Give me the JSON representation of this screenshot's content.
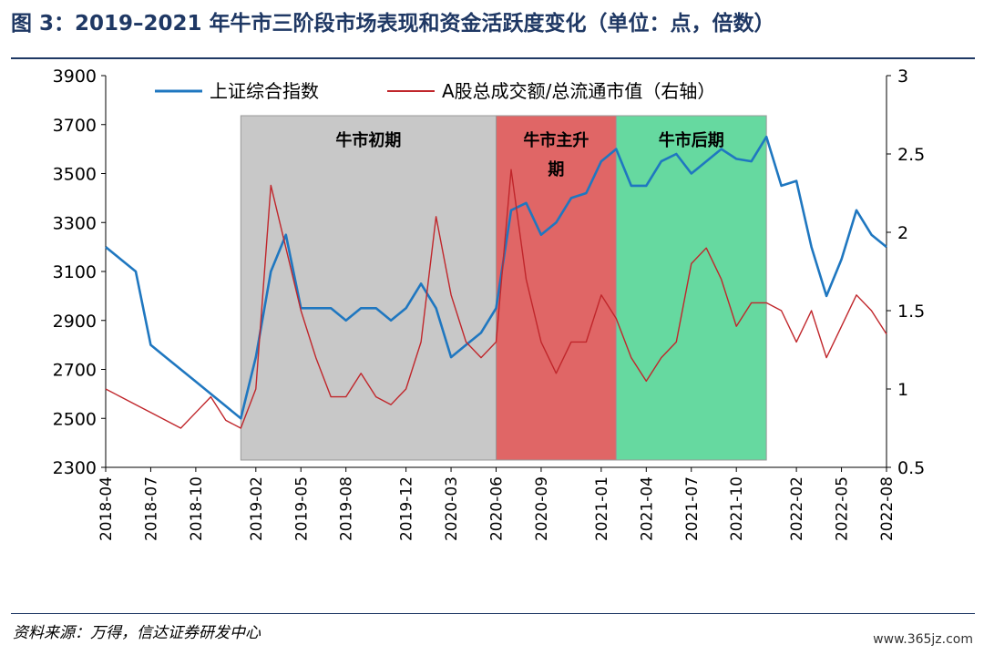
{
  "figure": {
    "title": "图 3：2019–2021 年牛市三阶段市场表现和资金活跃度变化（单位：点，倍数）",
    "source": "资料来源：万得，信达证券研发中心",
    "watermark": "www.365jz.com"
  },
  "chart_data": {
    "type": "line",
    "x_ticks": [
      "2018-04",
      "2018-07",
      "2018-10",
      "2019-02",
      "2019-05",
      "2019-08",
      "2019-12",
      "2020-03",
      "2020-06",
      "2020-09",
      "2021-01",
      "2021-04",
      "2021-07",
      "2021-10",
      "2022-02",
      "2022-05",
      "2022-08"
    ],
    "x_range": [
      "2018-04",
      "2022-08"
    ],
    "y_left": {
      "range": [
        2300,
        3900
      ],
      "ticks": [
        "2300",
        "2500",
        "2700",
        "2900",
        "3100",
        "3300",
        "3500",
        "3700",
        "3900"
      ]
    },
    "y_right": {
      "range": [
        0.5,
        3
      ],
      "ticks": [
        "0.5",
        "1",
        "1.5",
        "2",
        "2.5",
        "3"
      ]
    },
    "legend_position": "top",
    "phases": [
      {
        "label": "牛市初期",
        "start": "2019-01",
        "end": "2020-06",
        "color": "#c8c8c8"
      },
      {
        "label": "牛市主升期",
        "start": "2020-06",
        "end": "2021-02",
        "color": "#e06666"
      },
      {
        "label": "牛市后期",
        "start": "2021-02",
        "end": "2021-12",
        "color": "#66d9a0"
      }
    ],
    "series": [
      {
        "name": "上证综合指数",
        "axis": "left",
        "color": "#1f77c0",
        "points": [
          [
            "2018-04",
            3200
          ],
          [
            "2018-05",
            3150
          ],
          [
            "2018-06",
            3100
          ],
          [
            "2018-07",
            2800
          ],
          [
            "2018-08",
            2750
          ],
          [
            "2018-09",
            2700
          ],
          [
            "2018-10",
            2650
          ],
          [
            "2018-11",
            2600
          ],
          [
            "2018-12",
            2550
          ],
          [
            "2019-01",
            2500
          ],
          [
            "2019-02",
            2750
          ],
          [
            "2019-03",
            3100
          ],
          [
            "2019-04",
            3250
          ],
          [
            "2019-05",
            2950
          ],
          [
            "2019-06",
            2950
          ],
          [
            "2019-07",
            2950
          ],
          [
            "2019-08",
            2900
          ],
          [
            "2019-09",
            2950
          ],
          [
            "2019-10",
            2950
          ],
          [
            "2019-11",
            2900
          ],
          [
            "2019-12",
            2950
          ],
          [
            "2020-01",
            3050
          ],
          [
            "2020-02",
            2950
          ],
          [
            "2020-03",
            2750
          ],
          [
            "2020-04",
            2800
          ],
          [
            "2020-05",
            2850
          ],
          [
            "2020-06",
            2950
          ],
          [
            "2020-07",
            3350
          ],
          [
            "2020-08",
            3380
          ],
          [
            "2020-09",
            3250
          ],
          [
            "2020-10",
            3300
          ],
          [
            "2020-11",
            3400
          ],
          [
            "2020-12",
            3420
          ],
          [
            "2021-01",
            3550
          ],
          [
            "2021-02",
            3600
          ],
          [
            "2021-03",
            3450
          ],
          [
            "2021-04",
            3450
          ],
          [
            "2021-05",
            3550
          ],
          [
            "2021-06",
            3580
          ],
          [
            "2021-07",
            3500
          ],
          [
            "2021-08",
            3550
          ],
          [
            "2021-09",
            3600
          ],
          [
            "2021-10",
            3560
          ],
          [
            "2021-11",
            3550
          ],
          [
            "2021-12",
            3650
          ],
          [
            "2022-01",
            3450
          ],
          [
            "2022-02",
            3470
          ],
          [
            "2022-03",
            3200
          ],
          [
            "2022-04",
            3000
          ],
          [
            "2022-05",
            3150
          ],
          [
            "2022-06",
            3350
          ],
          [
            "2022-07",
            3250
          ],
          [
            "2022-08",
            3200
          ]
        ]
      },
      {
        "name": "A股总成交额/总流通市值（右轴）",
        "axis": "right",
        "color": "#c0262b",
        "points": [
          [
            "2018-04",
            1.0
          ],
          [
            "2018-05",
            0.95
          ],
          [
            "2018-06",
            0.9
          ],
          [
            "2018-07",
            0.85
          ],
          [
            "2018-08",
            0.8
          ],
          [
            "2018-09",
            0.75
          ],
          [
            "2018-10",
            0.85
          ],
          [
            "2018-11",
            0.95
          ],
          [
            "2018-12",
            0.8
          ],
          [
            "2019-01",
            0.75
          ],
          [
            "2019-02",
            1.0
          ],
          [
            "2019-03",
            2.3
          ],
          [
            "2019-04",
            1.9
          ],
          [
            "2019-05",
            1.5
          ],
          [
            "2019-06",
            1.2
          ],
          [
            "2019-07",
            0.95
          ],
          [
            "2019-08",
            0.95
          ],
          [
            "2019-09",
            1.1
          ],
          [
            "2019-10",
            0.95
          ],
          [
            "2019-11",
            0.9
          ],
          [
            "2019-12",
            1.0
          ],
          [
            "2020-01",
            1.3
          ],
          [
            "2020-02",
            2.1
          ],
          [
            "2020-03",
            1.6
          ],
          [
            "2020-04",
            1.3
          ],
          [
            "2020-05",
            1.2
          ],
          [
            "2020-06",
            1.3
          ],
          [
            "2020-07",
            2.4
          ],
          [
            "2020-08",
            1.7
          ],
          [
            "2020-09",
            1.3
          ],
          [
            "2020-10",
            1.1
          ],
          [
            "2020-11",
            1.3
          ],
          [
            "2020-12",
            1.3
          ],
          [
            "2021-01",
            1.6
          ],
          [
            "2021-02",
            1.45
          ],
          [
            "2021-03",
            1.2
          ],
          [
            "2021-04",
            1.05
          ],
          [
            "2021-05",
            1.2
          ],
          [
            "2021-06",
            1.3
          ],
          [
            "2021-07",
            1.8
          ],
          [
            "2021-08",
            1.9
          ],
          [
            "2021-09",
            1.7
          ],
          [
            "2021-10",
            1.4
          ],
          [
            "2021-11",
            1.55
          ],
          [
            "2021-12",
            1.55
          ],
          [
            "2022-01",
            1.5
          ],
          [
            "2022-02",
            1.3
          ],
          [
            "2022-03",
            1.5
          ],
          [
            "2022-04",
            1.2
          ],
          [
            "2022-05",
            1.4
          ],
          [
            "2022-06",
            1.6
          ],
          [
            "2022-07",
            1.5
          ],
          [
            "2022-08",
            1.35
          ]
        ]
      }
    ]
  }
}
